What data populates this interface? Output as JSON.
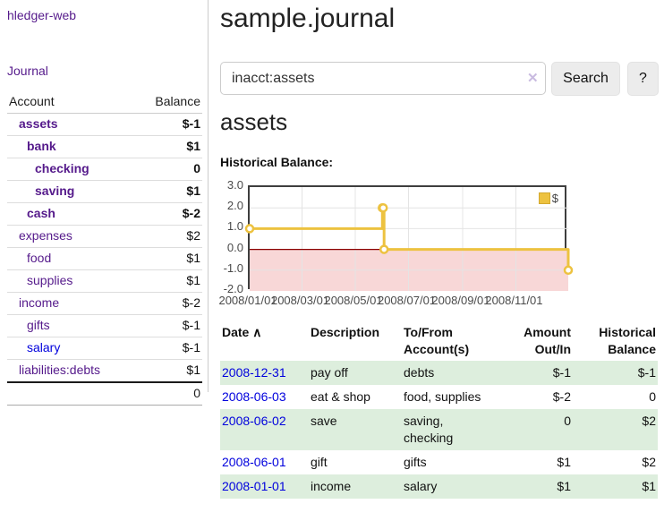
{
  "app": {
    "brand": "hledger-web"
  },
  "colors": {
    "link_purple": "#551a8b",
    "link_blue": "#0000dd",
    "negative_strong": "#8f0000",
    "negative": "#8b1a1a",
    "negative_soft": "#b07070",
    "row_stripe_green": "#ddeedd",
    "chart_series_gold": "#edc240",
    "chart_negative_fill": "#f8d7d7",
    "chart_zero_line": "#8b0000"
  },
  "sidebar": {
    "journal_label": "Journal",
    "accounts_table": {
      "headers": [
        "Account",
        "Balance"
      ],
      "rows": [
        {
          "account": "assets",
          "level": 1,
          "balance": "$-1",
          "selected": true,
          "balance_style": "strong-negative",
          "link_color": "purple"
        },
        {
          "account": "bank",
          "level": 2,
          "balance": "$1",
          "selected": true,
          "balance_style": "strong",
          "link_color": "purple"
        },
        {
          "account": "checking",
          "level": 3,
          "balance": "0",
          "selected": true,
          "balance_style": "strong",
          "link_color": "purple"
        },
        {
          "account": "saving",
          "level": 3,
          "balance": "$1",
          "selected": true,
          "balance_style": "strong",
          "link_color": "purple"
        },
        {
          "account": "cash",
          "level": 2,
          "balance": "$-2",
          "selected": true,
          "balance_style": "strong-negative",
          "link_color": "purple"
        },
        {
          "account": "expenses",
          "level": 1,
          "balance": "$2",
          "selected": false,
          "balance_style": "normal",
          "link_color": "purple"
        },
        {
          "account": "food",
          "level": 2,
          "balance": "$1",
          "selected": false,
          "balance_style": "normal",
          "link_color": "purple"
        },
        {
          "account": "supplies",
          "level": 2,
          "balance": "$1",
          "selected": false,
          "balance_style": "normal",
          "link_color": "purple"
        },
        {
          "account": "income",
          "level": 1,
          "balance": "$-2",
          "selected": false,
          "balance_style": "soft-negative",
          "link_color": "purple"
        },
        {
          "account": "gifts",
          "level": 2,
          "balance": "$-1",
          "selected": false,
          "balance_style": "soft-negative",
          "link_color": "purple"
        },
        {
          "account": "salary",
          "level": 2,
          "balance": "$-1",
          "selected": false,
          "balance_style": "soft-negative",
          "link_color": "blue"
        },
        {
          "account": "liabilities:debts",
          "level": 1,
          "balance": "$1",
          "selected": false,
          "balance_style": "normal",
          "link_color": "purple"
        }
      ],
      "total": "0"
    }
  },
  "main": {
    "title": "sample.journal",
    "search": {
      "value": "inacct:assets",
      "clear_icon": "✕",
      "button_label": "Search",
      "help_label": "?"
    },
    "account_heading": "assets",
    "chart_label": "Historical Balance:"
  },
  "chart_data": {
    "type": "line",
    "title": "Historical Balance",
    "step": true,
    "series": [
      {
        "name": "$",
        "color": "#edc240",
        "points": [
          {
            "x": "2008-01-01",
            "y": 1
          },
          {
            "x": "2008-06-01",
            "y": 2
          },
          {
            "x": "2008-06-02",
            "y": 2
          },
          {
            "x": "2008-06-03",
            "y": 0
          },
          {
            "x": "2008-12-31",
            "y": -1
          }
        ]
      }
    ],
    "xlim": [
      "2008-01-01",
      "2008-12-31"
    ],
    "ylim": [
      -2,
      3
    ],
    "x_ticks": [
      {
        "x": "2008-01-01",
        "label": "2008/01/01"
      },
      {
        "x": "2008-03-01",
        "label": "2008/03/01"
      },
      {
        "x": "2008-05-01",
        "label": "2008/05/01"
      },
      {
        "x": "2008-07-01",
        "label": "2008/07/01"
      },
      {
        "x": "2008-09-01",
        "label": "2008/09/01"
      },
      {
        "x": "2008-11-01",
        "label": "2008/11/01"
      }
    ],
    "y_ticks": [
      {
        "y": 3,
        "label": "3.0"
      },
      {
        "y": 2,
        "label": "2.0"
      },
      {
        "y": 1,
        "label": "1.0"
      },
      {
        "y": 0,
        "label": "0.0"
      },
      {
        "y": -1,
        "label": "-1.0"
      },
      {
        "y": -2,
        "label": "-2.0"
      }
    ],
    "grid": true,
    "legend": {
      "label": "$",
      "position": "top-right"
    },
    "negative_region_color": "#f8d7d7",
    "zero_line_color": "#8b0000"
  },
  "register_table": {
    "headers": [
      {
        "key": "date",
        "label": "Date",
        "align": "left",
        "sort_icon": "∧",
        "sortable": true
      },
      {
        "key": "description",
        "label": "Description",
        "align": "left"
      },
      {
        "key": "tofrom-accounts",
        "label": "To/From Account(s)",
        "align": "left"
      },
      {
        "key": "amount-outin",
        "label": "Amount Out/In",
        "align": "right"
      },
      {
        "key": "historical-balance",
        "label": "Historical Balance",
        "align": "right"
      }
    ],
    "rows": [
      {
        "date": "2008-12-31",
        "description": "pay off",
        "accounts": "debts",
        "amount": "$-1",
        "balance": "$-1",
        "amount_negative": true,
        "balance_negative": true
      },
      {
        "date": "2008-06-03",
        "description": "eat & shop",
        "accounts": "food, supplies",
        "amount": "$-2",
        "balance": "0",
        "amount_negative": true,
        "balance_negative": false
      },
      {
        "date": "2008-06-02",
        "description": "save",
        "accounts": "saving, checking",
        "amount": "0",
        "balance": "$2",
        "amount_negative": false,
        "balance_negative": false
      },
      {
        "date": "2008-06-01",
        "description": "gift",
        "accounts": "gifts",
        "amount": "$1",
        "balance": "$2",
        "amount_negative": false,
        "balance_negative": false
      },
      {
        "date": "2008-01-01",
        "description": "income",
        "accounts": "salary",
        "amount": "$1",
        "balance": "$1",
        "amount_negative": false,
        "balance_negative": false
      }
    ]
  }
}
